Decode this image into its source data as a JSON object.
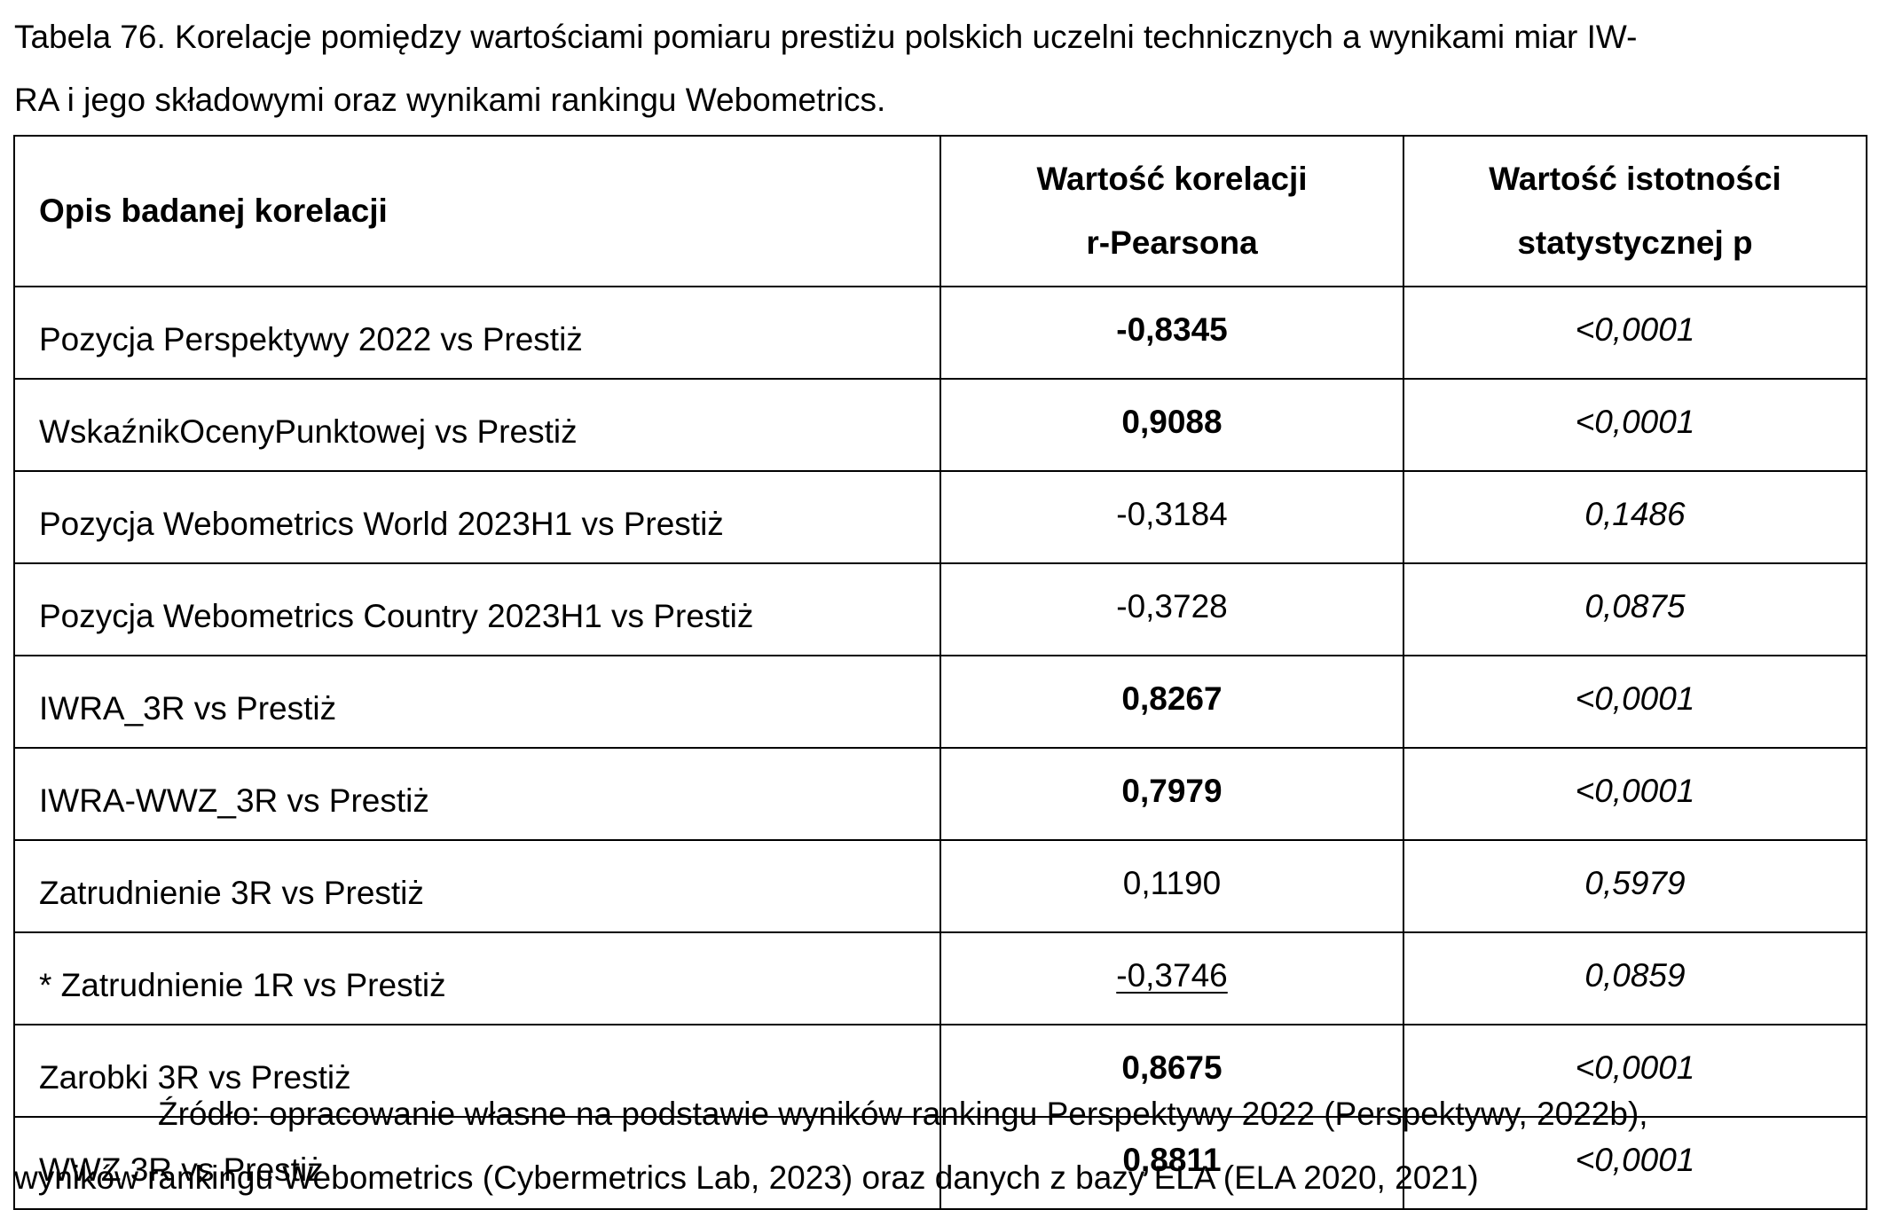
{
  "caption": {
    "line1": "Tabela 76. Korelacje pomiędzy wartościami pomiaru prestiżu polskich uczelni technicznych a wynikami miar IW-",
    "line2": "RA i jego składowymi oraz wynikami rankingu Webometrics."
  },
  "table": {
    "headers": {
      "description": "Opis badanej korelacji",
      "r_line1": "Wartość korelacji",
      "r_line2": "r-Pearsona",
      "p_line1": "Wartość istotności",
      "p_line2": "statystycznej p"
    },
    "rows": [
      {
        "description": "Pozycja Perspektywy 2022 vs Prestiż",
        "r": "-0,8345",
        "p": "<0,0001",
        "bold": true,
        "underline": false
      },
      {
        "description": "WskaźnikOcenyPunktowej vs Prestiż",
        "r": "0,9088",
        "p": "<0,0001",
        "bold": true,
        "underline": false
      },
      {
        "description": "Pozycja Webometrics World 2023H1 vs Prestiż",
        "r": "-0,3184",
        "p": "0,1486",
        "bold": false,
        "underline": false
      },
      {
        "description": "Pozycja Webometrics Country 2023H1 vs Prestiż",
        "r": "-0,3728",
        "p": "0,0875",
        "bold": false,
        "underline": false
      },
      {
        "description": "IWRA_3R vs Prestiż",
        "r": "0,8267",
        "p": "<0,0001",
        "bold": true,
        "underline": false
      },
      {
        "description": "IWRA-WWZ_3R vs Prestiż",
        "r": "0,7979",
        "p": "<0,0001",
        "bold": true,
        "underline": false
      },
      {
        "description": "Zatrudnienie 3R vs Prestiż",
        "r": "0,1190",
        "p": "0,5979",
        "bold": false,
        "underline": false
      },
      {
        "description": "* Zatrudnienie 1R vs Prestiż",
        "r": "-0,3746",
        "p": "0,0859",
        "bold": false,
        "underline": true
      },
      {
        "description": "Zarobki 3R vs Prestiż",
        "r": "0,8675",
        "p": "<0,0001",
        "bold": true,
        "underline": false
      },
      {
        "description": "WWZ 3R vs Prestiż",
        "r": "0,8811",
        "p": "<0,0001",
        "bold": true,
        "underline": false
      }
    ]
  },
  "source": {
    "line1": "Źródło: opracowanie własne na podstawie wyników rankingu Perspektywy 2022 (Perspektywy, 2022b),",
    "line2": "wyników rankingu Webometrics (Cybermetrics Lab, 2023) oraz danych z bazy ELA (ELA 2020, 2021)"
  }
}
